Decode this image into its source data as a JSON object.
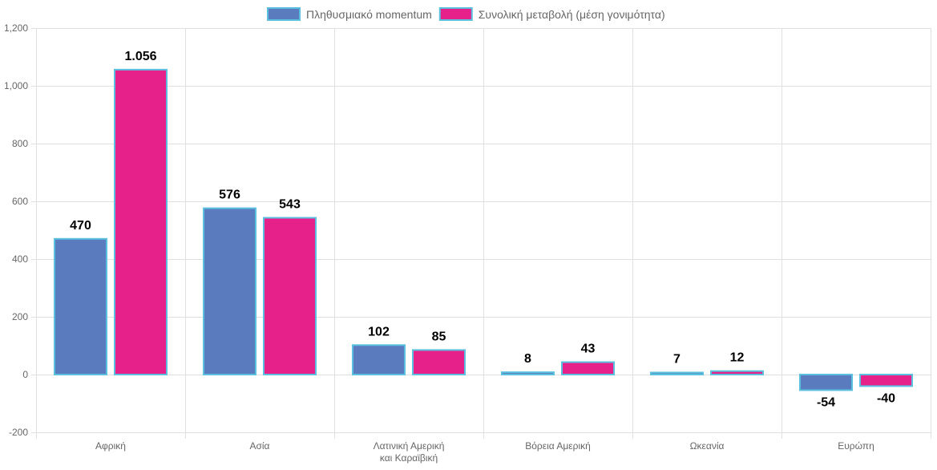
{
  "chart_data": {
    "type": "bar",
    "title": "",
    "xlabel": "",
    "ylabel": "",
    "ylim": [
      -200,
      1200
    ],
    "yticks": [
      -200,
      0,
      200,
      400,
      600,
      800,
      1000,
      1200
    ],
    "ytick_labels": [
      "-200",
      "0",
      "200",
      "400",
      "600",
      "800",
      "1,000",
      "1,200"
    ],
    "grid": true,
    "legend_position": "top",
    "categories": [
      [
        "Αφρική"
      ],
      [
        "Ασία"
      ],
      [
        "Λατινική Αμερική",
        "και Καραϊβική"
      ],
      [
        "Βόρεια Αμερική"
      ],
      [
        "Ωκεανία"
      ],
      [
        "Ευρώπη"
      ]
    ],
    "series": [
      {
        "name": "Πληθυσμιακό momentum",
        "color": "#5b7bbf",
        "border": "#5bc0de",
        "values": [
          470,
          576,
          102,
          8,
          7,
          -54
        ],
        "labels": [
          "470",
          "576",
          "102",
          "8",
          "7",
          "-54"
        ]
      },
      {
        "name": "Συνολική μεταβολή (μέση γονιμότητα)",
        "color": "#e6228a",
        "border": "#5bc0de",
        "values": [
          1056,
          543,
          85,
          43,
          12,
          -40
        ],
        "labels": [
          "1.056",
          "543",
          "85",
          "43",
          "12",
          "-40"
        ]
      }
    ]
  }
}
